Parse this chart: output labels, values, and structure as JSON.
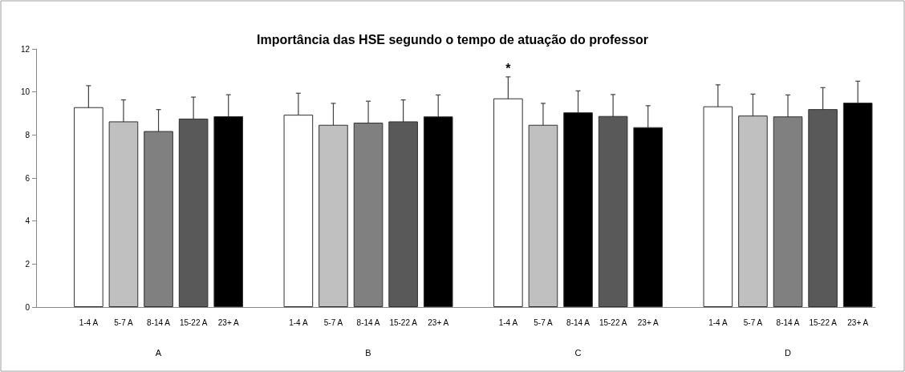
{
  "chart_data": {
    "type": "bar",
    "title": "Importância das HSE segundo o tempo de atuação do professor",
    "categories": [
      null,
      "1-4 A",
      "5-7 A",
      "8-14 A",
      "15-22 A",
      "23+ A",
      null,
      "1-4 A",
      "5-7 A",
      "8-14 A",
      "15-22 A",
      "23+ A",
      null,
      "1-4 A",
      "5-7 A",
      "8-14 A",
      "15-22 A",
      "23+ A",
      null,
      "1-4 A",
      "5-7 A",
      "8-14 A",
      "15-22 A",
      "23+ A"
    ],
    "values": [
      null,
      9.29,
      8.63,
      8.18,
      8.76,
      8.87,
      null,
      8.94,
      8.47,
      8.57,
      8.63,
      8.86,
      null,
      9.7,
      8.47,
      9.05,
      8.88,
      8.36,
      null,
      9.33,
      8.9,
      8.86,
      9.2,
      9.5
    ],
    "errors": [
      null,
      1,
      1,
      1,
      1,
      1,
      null,
      1,
      1,
      1,
      1,
      1,
      null,
      1,
      1,
      1,
      1,
      1,
      null,
      1,
      1,
      1,
      1,
      1
    ],
    "colors": [
      "#ffffff",
      "#ffffff",
      "#c0c0c0",
      "#808080",
      "#595959",
      "#000000",
      "#ffffff",
      "#ffffff",
      "#c0c0c0",
      "#808080",
      "#595959",
      "#000000",
      "#ffffff",
      "#ffffff",
      "#c0c0c0",
      "#000000",
      "#595959",
      "#000000",
      "#ffffff",
      "#ffffff",
      "#c0c0c0",
      "#808080",
      "#595959",
      "#000000"
    ],
    "ylim": [
      0,
      12
    ],
    "yticks": [
      0,
      2,
      4,
      6,
      8,
      10,
      12
    ],
    "grid": false,
    "annotations": [
      "A",
      "B",
      "C",
      "D",
      "*"
    ]
  }
}
